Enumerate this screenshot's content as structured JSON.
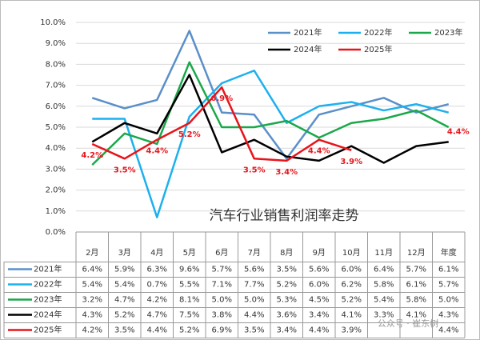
{
  "chart_data": {
    "type": "line",
    "title": "汽车行业销售利润率走势",
    "watermark": "公众号 · 崔东树",
    "categories": [
      "2月",
      "3月",
      "4月",
      "5月",
      "6月",
      "7月",
      "8月",
      "9月",
      "10月",
      "11月",
      "12月",
      "年度"
    ],
    "ylim": [
      0,
      10
    ],
    "yticks": [
      {
        "value": 0,
        "label": "0.0%"
      },
      {
        "value": 1,
        "label": "1.0%"
      },
      {
        "value": 2,
        "label": "2.0%"
      },
      {
        "value": 3,
        "label": "3.0%"
      },
      {
        "value": 4,
        "label": "4.0%"
      },
      {
        "value": 5,
        "label": "5.0%"
      },
      {
        "value": 6,
        "label": "6.0%"
      },
      {
        "value": 7,
        "label": "7.0%"
      },
      {
        "value": 8,
        "label": "8.0%"
      },
      {
        "value": 9,
        "label": "9.0%"
      },
      {
        "value": 10,
        "label": "10.0%"
      }
    ],
    "grid": true,
    "series": [
      {
        "name": "2021年",
        "color": "#5b8fc9",
        "values": [
          6.4,
          5.9,
          6.3,
          9.6,
          5.7,
          5.6,
          3.5,
          5.6,
          6.0,
          6.4,
          5.7,
          6.1
        ],
        "value_labels": [
          "6.4%",
          "5.9%",
          "6.3%",
          "9.6%",
          "5.7%",
          "5.6%",
          "3.5%",
          "5.6%",
          "6.0%",
          "6.4%",
          "5.7%",
          "6.1%"
        ]
      },
      {
        "name": "2022年",
        "color": "#1cb0ee",
        "values": [
          5.4,
          5.4,
          0.7,
          5.5,
          7.1,
          7.7,
          5.2,
          6.0,
          6.2,
          5.8,
          6.1,
          5.7
        ],
        "value_labels": [
          "5.4%",
          "5.4%",
          "0.7%",
          "5.5%",
          "7.1%",
          "7.7%",
          "5.2%",
          "6.0%",
          "6.2%",
          "5.8%",
          "6.1%",
          "5.7%"
        ]
      },
      {
        "name": "2023年",
        "color": "#1aa84a",
        "values": [
          3.2,
          4.7,
          4.2,
          8.1,
          5.0,
          5.0,
          5.3,
          4.5,
          5.2,
          5.4,
          5.8,
          5.0
        ],
        "value_labels": [
          "3.2%",
          "4.7%",
          "4.2%",
          "8.1%",
          "5.0%",
          "5.0%",
          "5.3%",
          "4.5%",
          "5.2%",
          "5.4%",
          "5.8%",
          "5.0%"
        ]
      },
      {
        "name": "2024年",
        "color": "#000000",
        "values": [
          4.3,
          5.2,
          4.7,
          7.5,
          3.8,
          4.4,
          3.6,
          3.4,
          4.1,
          3.3,
          4.1,
          4.3
        ],
        "value_labels": [
          "4.3%",
          "5.2%",
          "4.7%",
          "7.5%",
          "3.8%",
          "4.4%",
          "3.6%",
          "3.4%",
          "4.1%",
          "3.3%",
          "4.1%",
          "4.3%"
        ]
      },
      {
        "name": "2025年",
        "color": "#e8141b",
        "values": [
          4.2,
          3.5,
          4.4,
          5.2,
          6.9,
          3.5,
          3.4,
          4.4,
          3.9,
          null,
          null,
          4.4
        ],
        "value_labels": [
          "4.2%",
          "3.5%",
          "4.4%",
          "5.2%",
          "6.9%",
          "3.5%",
          "3.4%",
          "4.4%",
          "3.9%",
          null,
          null,
          "4.4%"
        ],
        "data_labels": true
      }
    ]
  }
}
